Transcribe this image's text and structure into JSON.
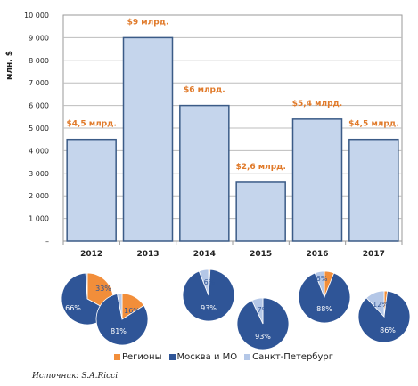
{
  "chart_data": [
    {
      "type": "bar",
      "ylabel": "млн. $",
      "ylim": [
        0,
        10000
      ],
      "yticks": [
        "–",
        "1 000",
        "2 000",
        "3 000",
        "4 000",
        "5 000",
        "6 000",
        "7 000",
        "8 000",
        "9 000",
        "10 000"
      ],
      "categories": [
        "2012",
        "2013",
        "2014",
        "2015",
        "2016",
        "2017"
      ],
      "values": [
        4500,
        9000,
        6000,
        2600,
        5400,
        4500
      ],
      "data_labels": [
        "$4,5 млрд.",
        "$9 млрд.",
        "$6 млрд.",
        "$2,6 млрд.",
        "$5,4 млрд.",
        "$4,5 млрд."
      ],
      "grid": true,
      "colors": {
        "bar_fill": "#c5d5ec",
        "bar_stroke": "#3b5b87",
        "label": "#e07a2a"
      }
    },
    {
      "type": "pie",
      "categories": [
        "Регионы",
        "Москва и МО",
        "Санкт-Петербург"
      ],
      "colors": [
        "#f28e3a",
        "#2f5597",
        "#b4c7e7"
      ],
      "series": [
        {
          "year": "2012",
          "values": [
            33,
            66,
            1
          ],
          "labels": [
            "33%",
            "66%",
            ""
          ]
        },
        {
          "year": "2013",
          "values": [
            16,
            81,
            3
          ],
          "labels": [
            "16%",
            "81%",
            ""
          ]
        },
        {
          "year": "2014",
          "values": [
            1,
            93,
            6
          ],
          "labels": [
            "",
            "93%",
            "6%"
          ]
        },
        {
          "year": "2015",
          "values": [
            0,
            93,
            7
          ],
          "labels": [
            "",
            "93%",
            "7%"
          ]
        },
        {
          "year": "2016",
          "values": [
            6,
            88,
            6
          ],
          "labels": [
            "6%",
            "88%",
            ""
          ]
        },
        {
          "year": "2017",
          "values": [
            2,
            86,
            12
          ],
          "labels": [
            "",
            "86%",
            "12%"
          ]
        }
      ],
      "legend": "bottom"
    }
  ],
  "legend_labels": {
    "regions": "Регионы",
    "moscow": "Москва и МО",
    "spb": "Санкт-Петербург"
  },
  "source": "Источник: S.A.Ricci"
}
